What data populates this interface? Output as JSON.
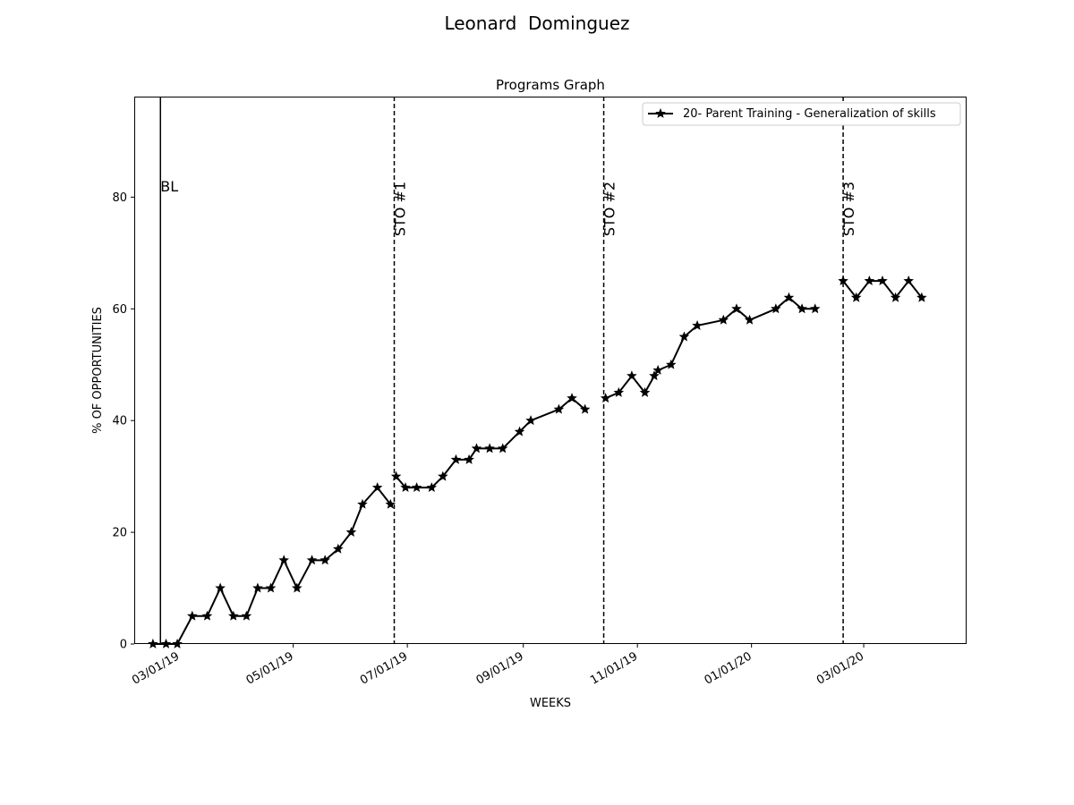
{
  "figure": {
    "title": "Leonard  Dominguez"
  },
  "chart_data": {
    "type": "line",
    "title": "Programs Graph",
    "xlabel": "WEEKS",
    "ylabel": "% OF OPPORTUNITIES",
    "x_format": "MM/DD/YY",
    "xlim": [
      "2019-02-05",
      "2020-04-25"
    ],
    "ylim": [
      0,
      98
    ],
    "yticks": [
      0,
      20,
      40,
      60,
      80
    ],
    "xticks": [
      {
        "date": "2019-03-01",
        "label": "03/01/19"
      },
      {
        "date": "2019-05-01",
        "label": "05/01/19"
      },
      {
        "date": "2019-07-01",
        "label": "07/01/19"
      },
      {
        "date": "2019-09-01",
        "label": "09/01/19"
      },
      {
        "date": "2019-11-01",
        "label": "11/01/19"
      },
      {
        "date": "2020-01-01",
        "label": "01/01/20"
      },
      {
        "date": "2020-03-01",
        "label": "03/01/20"
      }
    ],
    "grid": false,
    "legend": {
      "position": "top-right",
      "entries": [
        "20- Parent Training - Generalization of skills"
      ]
    },
    "phase_lines": [
      {
        "date": "2019-02-19",
        "label": "BL",
        "style": "solid",
        "label_orientation": "horizontal"
      },
      {
        "date": "2019-06-24",
        "label": "STO #1",
        "style": "dashed",
        "label_orientation": "vertical"
      },
      {
        "date": "2019-10-14",
        "label": "STO #2",
        "style": "dashed",
        "label_orientation": "vertical"
      },
      {
        "date": "2020-02-19",
        "label": "STO #3",
        "style": "dashed",
        "label_orientation": "vertical"
      }
    ],
    "series": [
      {
        "name": "20- Parent Training - Generalization of skills",
        "color": "#000000",
        "marker": "star",
        "segments": [
          [
            {
              "x": "2019-02-15",
              "y": 0
            },
            {
              "x": "2019-02-22",
              "y": 0
            },
            {
              "x": "2019-02-28",
              "y": 0
            },
            {
              "x": "2019-03-08",
              "y": 5
            },
            {
              "x": "2019-03-16",
              "y": 5
            },
            {
              "x": "2019-03-23",
              "y": 10
            },
            {
              "x": "2019-03-30",
              "y": 5
            },
            {
              "x": "2019-04-06",
              "y": 5
            },
            {
              "x": "2019-04-12",
              "y": 10
            },
            {
              "x": "2019-04-19",
              "y": 10
            },
            {
              "x": "2019-04-26",
              "y": 15
            },
            {
              "x": "2019-05-03",
              "y": 10
            },
            {
              "x": "2019-05-11",
              "y": 15
            },
            {
              "x": "2019-05-18",
              "y": 15
            },
            {
              "x": "2019-05-25",
              "y": 17
            },
            {
              "x": "2019-06-01",
              "y": 20
            },
            {
              "x": "2019-06-07",
              "y": 25
            },
            {
              "x": "2019-06-15",
              "y": 28
            },
            {
              "x": "2019-06-22",
              "y": 25
            }
          ],
          [
            {
              "x": "2019-06-25",
              "y": 30
            },
            {
              "x": "2019-06-30",
              "y": 28
            },
            {
              "x": "2019-07-06",
              "y": 28
            },
            {
              "x": "2019-07-14",
              "y": 28
            },
            {
              "x": "2019-07-20",
              "y": 30
            },
            {
              "x": "2019-07-27",
              "y": 33
            },
            {
              "x": "2019-08-03",
              "y": 33
            },
            {
              "x": "2019-08-07",
              "y": 35
            },
            {
              "x": "2019-08-14",
              "y": 35
            },
            {
              "x": "2019-08-21",
              "y": 35
            },
            {
              "x": "2019-08-30",
              "y": 38
            },
            {
              "x": "2019-09-05",
              "y": 40
            },
            {
              "x": "2019-09-20",
              "y": 42
            },
            {
              "x": "2019-09-27",
              "y": 44
            },
            {
              "x": "2019-10-04",
              "y": 42
            }
          ],
          [
            {
              "x": "2019-10-15",
              "y": 44
            },
            {
              "x": "2019-10-22",
              "y": 45
            },
            {
              "x": "2019-10-29",
              "y": 48
            },
            {
              "x": "2019-11-05",
              "y": 45
            },
            {
              "x": "2019-11-10",
              "y": 48
            },
            {
              "x": "2019-11-12",
              "y": 49
            },
            {
              "x": "2019-11-19",
              "y": 50
            },
            {
              "x": "2019-11-26",
              "y": 55
            },
            {
              "x": "2019-12-03",
              "y": 57
            },
            {
              "x": "2019-12-17",
              "y": 58
            },
            {
              "x": "2019-12-24",
              "y": 60
            },
            {
              "x": "2019-12-31",
              "y": 58
            },
            {
              "x": "2020-01-14",
              "y": 60
            },
            {
              "x": "2020-01-21",
              "y": 62
            },
            {
              "x": "2020-01-28",
              "y": 60
            },
            {
              "x": "2020-02-04",
              "y": 60
            }
          ],
          [
            {
              "x": "2020-02-19",
              "y": 65
            },
            {
              "x": "2020-02-26",
              "y": 62
            },
            {
              "x": "2020-03-04",
              "y": 65
            },
            {
              "x": "2020-03-11",
              "y": 65
            },
            {
              "x": "2020-03-18",
              "y": 62
            },
            {
              "x": "2020-03-25",
              "y": 65
            },
            {
              "x": "2020-04-01",
              "y": 62
            }
          ]
        ]
      }
    ]
  }
}
